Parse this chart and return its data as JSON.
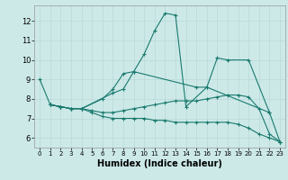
{
  "title": "",
  "xlabel": "Humidex (Indice chaleur)",
  "xlim": [
    -0.5,
    23.5
  ],
  "ylim": [
    5.5,
    12.8
  ],
  "xticks": [
    0,
    1,
    2,
    3,
    4,
    5,
    6,
    7,
    8,
    9,
    10,
    11,
    12,
    13,
    14,
    15,
    16,
    17,
    18,
    19,
    20,
    21,
    22,
    23
  ],
  "yticks": [
    6,
    7,
    8,
    9,
    10,
    11,
    12
  ],
  "bg_color": "#cce9e8",
  "line_color": "#1a7a6e",
  "grid_color": "#b8d8d8",
  "lines": [
    {
      "x": [
        0,
        1,
        2,
        3,
        4,
        7,
        8,
        9,
        10,
        11,
        12,
        13,
        14,
        16,
        17,
        18,
        20,
        22,
        23
      ],
      "y": [
        9.0,
        7.7,
        7.6,
        7.5,
        7.5,
        8.3,
        8.5,
        9.4,
        10.3,
        11.5,
        12.4,
        12.3,
        7.6,
        8.6,
        10.1,
        10.0,
        10.0,
        7.3,
        5.8
      ]
    },
    {
      "x": [
        1,
        2,
        3,
        4,
        6,
        7,
        8,
        9,
        15,
        16,
        22
      ],
      "y": [
        7.7,
        7.6,
        7.5,
        7.5,
        8.0,
        8.5,
        9.3,
        9.4,
        8.6,
        8.6,
        7.3
      ]
    },
    {
      "x": [
        1,
        2,
        3,
        4,
        5,
        6,
        7,
        8,
        9,
        10,
        11,
        12,
        13,
        14,
        15,
        16,
        17,
        18,
        19,
        20,
        21,
        22,
        23
      ],
      "y": [
        7.7,
        7.6,
        7.5,
        7.5,
        7.4,
        7.3,
        7.3,
        7.4,
        7.5,
        7.6,
        7.7,
        7.8,
        7.9,
        7.9,
        7.9,
        8.0,
        8.1,
        8.2,
        8.2,
        8.1,
        7.5,
        6.2,
        5.8
      ]
    },
    {
      "x": [
        1,
        2,
        3,
        4,
        5,
        6,
        7,
        8,
        9,
        10,
        11,
        12,
        13,
        14,
        15,
        16,
        17,
        18,
        19,
        20,
        21,
        22,
        23
      ],
      "y": [
        7.7,
        7.6,
        7.5,
        7.5,
        7.3,
        7.1,
        7.0,
        7.0,
        7.0,
        7.0,
        6.9,
        6.9,
        6.8,
        6.8,
        6.8,
        6.8,
        6.8,
        6.8,
        6.7,
        6.5,
        6.2,
        6.0,
        5.8
      ]
    }
  ]
}
